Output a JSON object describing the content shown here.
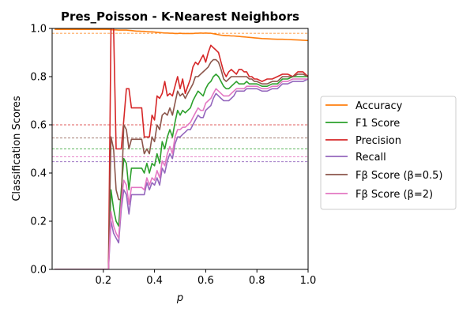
{
  "chart_data": {
    "type": "line",
    "title": "Pres_Poisson - K-Nearest Neighbors",
    "xlabel": "p",
    "ylabel": "Classification Scores",
    "xlim": [
      0.0,
      1.0
    ],
    "ylim": [
      0.0,
      1.0
    ],
    "xticks": [
      0.2,
      0.4,
      0.6,
      0.8,
      1.0
    ],
    "xtick_labels": [
      "0.2",
      "0.4",
      "0.6",
      "0.8",
      "1.0"
    ],
    "yticks": [
      0.0,
      0.2,
      0.4,
      0.6,
      0.8,
      1.0
    ],
    "ytick_labels": [
      "0.0",
      "0.2",
      "0.4",
      "0.6",
      "0.8",
      "1.0"
    ],
    "grid": false,
    "legend_placement": "outside-right",
    "x": [
      0.01,
      0.05,
      0.1,
      0.15,
      0.2,
      0.22,
      0.23,
      0.24,
      0.25,
      0.26,
      0.27,
      0.28,
      0.29,
      0.3,
      0.31,
      0.32,
      0.33,
      0.34,
      0.35,
      0.36,
      0.37,
      0.38,
      0.39,
      0.4,
      0.41,
      0.42,
      0.43,
      0.44,
      0.45,
      0.46,
      0.47,
      0.48,
      0.49,
      0.5,
      0.51,
      0.52,
      0.53,
      0.54,
      0.55,
      0.56,
      0.57,
      0.58,
      0.59,
      0.6,
      0.61,
      0.62,
      0.63,
      0.64,
      0.65,
      0.66,
      0.67,
      0.68,
      0.69,
      0.7,
      0.71,
      0.72,
      0.73,
      0.74,
      0.75,
      0.76,
      0.77,
      0.78,
      0.79,
      0.8,
      0.82,
      0.84,
      0.86,
      0.88,
      0.9,
      0.92,
      0.94,
      0.96,
      0.98,
      1.0
    ],
    "series": [
      {
        "name": "Accuracy",
        "color": "#ff7f0e",
        "values": [
          0.996,
          0.996,
          0.996,
          0.996,
          0.996,
          0.996,
          0.995,
          0.994,
          0.994,
          0.993,
          0.993,
          0.993,
          0.993,
          0.992,
          0.991,
          0.99,
          0.989,
          0.989,
          0.988,
          0.988,
          0.987,
          0.986,
          0.986,
          0.985,
          0.984,
          0.983,
          0.982,
          0.981,
          0.981,
          0.98,
          0.98,
          0.979,
          0.979,
          0.98,
          0.979,
          0.979,
          0.979,
          0.979,
          0.979,
          0.98,
          0.98,
          0.981,
          0.98,
          0.981,
          0.98,
          0.98,
          0.978,
          0.976,
          0.974,
          0.972,
          0.971,
          0.97,
          0.97,
          0.969,
          0.969,
          0.968,
          0.967,
          0.966,
          0.965,
          0.964,
          0.963,
          0.962,
          0.961,
          0.96,
          0.958,
          0.957,
          0.956,
          0.955,
          0.955,
          0.954,
          0.953,
          0.952,
          0.951,
          0.95
        ]
      },
      {
        "name": "F1 Score",
        "color": "#2ca02c",
        "values": [
          0.0,
          0.0,
          0.0,
          0.0,
          0.0,
          0.0,
          0.33,
          0.25,
          0.2,
          0.18,
          0.33,
          0.46,
          0.44,
          0.33,
          0.42,
          0.42,
          0.42,
          0.42,
          0.42,
          0.4,
          0.44,
          0.4,
          0.44,
          0.43,
          0.48,
          0.44,
          0.53,
          0.5,
          0.55,
          0.58,
          0.55,
          0.61,
          0.66,
          0.64,
          0.66,
          0.65,
          0.66,
          0.67,
          0.7,
          0.72,
          0.74,
          0.73,
          0.72,
          0.75,
          0.77,
          0.78,
          0.8,
          0.81,
          0.8,
          0.78,
          0.76,
          0.75,
          0.75,
          0.76,
          0.77,
          0.78,
          0.77,
          0.77,
          0.77,
          0.78,
          0.77,
          0.77,
          0.77,
          0.77,
          0.76,
          0.76,
          0.77,
          0.77,
          0.79,
          0.79,
          0.8,
          0.8,
          0.8,
          0.8
        ]
      },
      {
        "name": "Precision",
        "color": "#d62728",
        "values": [
          0.0,
          0.0,
          0.0,
          0.0,
          0.0,
          0.0,
          1.0,
          1.0,
          0.5,
          0.5,
          0.5,
          0.62,
          0.75,
          0.75,
          0.67,
          0.67,
          0.67,
          0.67,
          0.67,
          0.55,
          0.55,
          0.55,
          0.64,
          0.62,
          0.72,
          0.71,
          0.73,
          0.78,
          0.72,
          0.73,
          0.72,
          0.76,
          0.8,
          0.75,
          0.79,
          0.73,
          0.76,
          0.79,
          0.84,
          0.86,
          0.85,
          0.87,
          0.89,
          0.86,
          0.9,
          0.93,
          0.92,
          0.91,
          0.9,
          0.86,
          0.82,
          0.8,
          0.82,
          0.83,
          0.82,
          0.81,
          0.83,
          0.83,
          0.82,
          0.82,
          0.8,
          0.8,
          0.79,
          0.79,
          0.78,
          0.79,
          0.79,
          0.8,
          0.81,
          0.81,
          0.8,
          0.82,
          0.82,
          0.8
        ]
      },
      {
        "name": "Recall",
        "color": "#9467bd",
        "values": [
          0.0,
          0.0,
          0.0,
          0.0,
          0.0,
          0.0,
          0.2,
          0.15,
          0.13,
          0.11,
          0.25,
          0.33,
          0.31,
          0.23,
          0.31,
          0.31,
          0.31,
          0.31,
          0.31,
          0.31,
          0.36,
          0.33,
          0.36,
          0.35,
          0.38,
          0.35,
          0.42,
          0.4,
          0.45,
          0.48,
          0.46,
          0.52,
          0.55,
          0.55,
          0.56,
          0.57,
          0.58,
          0.58,
          0.6,
          0.62,
          0.64,
          0.63,
          0.63,
          0.66,
          0.67,
          0.68,
          0.71,
          0.73,
          0.72,
          0.71,
          0.7,
          0.7,
          0.7,
          0.71,
          0.72,
          0.74,
          0.74,
          0.74,
          0.74,
          0.75,
          0.75,
          0.75,
          0.75,
          0.75,
          0.74,
          0.74,
          0.75,
          0.75,
          0.77,
          0.77,
          0.78,
          0.78,
          0.78,
          0.79
        ]
      },
      {
        "name": "Fβ Score (β=0.5)",
        "color": "#8c564b",
        "values": [
          0.0,
          0.0,
          0.0,
          0.0,
          0.0,
          0.0,
          0.55,
          0.5,
          0.33,
          0.29,
          0.29,
          0.6,
          0.58,
          0.5,
          0.54,
          0.54,
          0.54,
          0.54,
          0.54,
          0.48,
          0.5,
          0.48,
          0.55,
          0.53,
          0.6,
          0.58,
          0.64,
          0.65,
          0.64,
          0.67,
          0.64,
          0.69,
          0.74,
          0.72,
          0.73,
          0.71,
          0.73,
          0.75,
          0.77,
          0.8,
          0.8,
          0.81,
          0.82,
          0.83,
          0.84,
          0.86,
          0.87,
          0.87,
          0.86,
          0.83,
          0.79,
          0.78,
          0.79,
          0.8,
          0.8,
          0.8,
          0.8,
          0.8,
          0.8,
          0.8,
          0.79,
          0.79,
          0.78,
          0.78,
          0.77,
          0.77,
          0.78,
          0.78,
          0.8,
          0.8,
          0.8,
          0.81,
          0.81,
          0.8
        ]
      },
      {
        "name": "Fβ Score (β=2)",
        "color": "#e377c2",
        "values": [
          0.0,
          0.0,
          0.0,
          0.0,
          0.0,
          0.0,
          0.24,
          0.18,
          0.15,
          0.13,
          0.28,
          0.37,
          0.35,
          0.27,
          0.34,
          0.34,
          0.34,
          0.34,
          0.34,
          0.33,
          0.38,
          0.35,
          0.38,
          0.37,
          0.41,
          0.38,
          0.45,
          0.43,
          0.48,
          0.51,
          0.48,
          0.55,
          0.58,
          0.58,
          0.59,
          0.59,
          0.6,
          0.61,
          0.63,
          0.65,
          0.67,
          0.66,
          0.66,
          0.69,
          0.7,
          0.71,
          0.73,
          0.75,
          0.74,
          0.73,
          0.72,
          0.72,
          0.72,
          0.73,
          0.74,
          0.75,
          0.75,
          0.75,
          0.75,
          0.76,
          0.76,
          0.76,
          0.76,
          0.76,
          0.75,
          0.75,
          0.76,
          0.76,
          0.78,
          0.78,
          0.79,
          0.79,
          0.79,
          0.79
        ]
      }
    ],
    "reference_lines": [
      {
        "y": 0.98,
        "color": "#ff7f0e"
      },
      {
        "y": 0.6,
        "color": "#d62728"
      },
      {
        "y": 0.545,
        "color": "#8c564b"
      },
      {
        "y": 0.5,
        "color": "#2ca02c"
      },
      {
        "y": 0.467,
        "color": "#e377c2"
      },
      {
        "y": 0.447,
        "color": "#9467bd"
      }
    ]
  }
}
